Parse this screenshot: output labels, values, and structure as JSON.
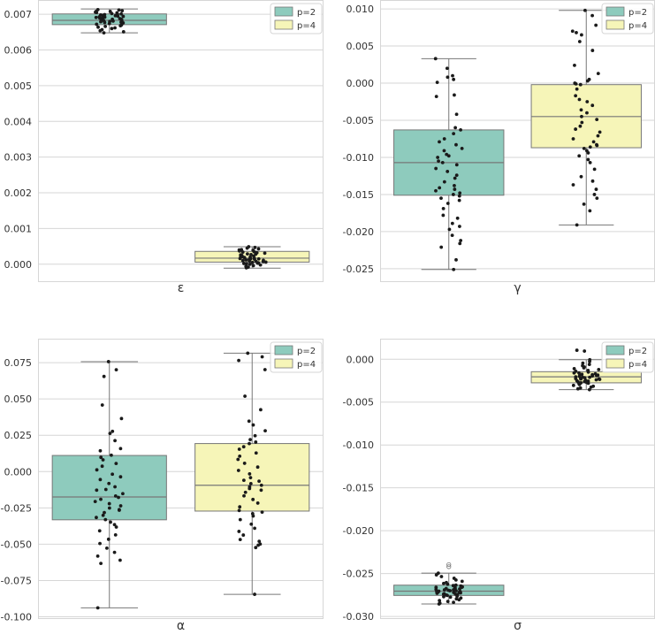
{
  "colors": {
    "p2": "#8ecbbd",
    "p4": "#f6f5b8",
    "grid": "#d6d6d6",
    "frame": "#d6d6d6",
    "median": "#777777",
    "whisker": "#777777",
    "point": "#1a1a1a",
    "text": "#333333"
  },
  "chart_data": [
    {
      "type": "box",
      "xlabel": "ε",
      "ylim": [
        -0.0005,
        0.0074
      ],
      "yticks": [
        0.0,
        0.001,
        0.002,
        0.003,
        0.004,
        0.005,
        0.006,
        0.007
      ],
      "ytick_labels": [
        "0.000",
        "0.001",
        "0.002",
        "0.003",
        "0.004",
        "0.005",
        "0.006",
        "0.007"
      ],
      "grid": true,
      "legend_position": "top-right",
      "series": [
        {
          "name": "p=2",
          "whisker_low": 0.00648,
          "q1": 0.00671,
          "median": 0.00683,
          "q3": 0.00701,
          "whisker_high": 0.00715,
          "points": [
            0.00713,
            0.00712,
            0.0071,
            0.00708,
            0.00706,
            0.00705,
            0.00704,
            0.00702,
            0.00701,
            0.007,
            0.00699,
            0.00698,
            0.00697,
            0.00695,
            0.00694,
            0.00693,
            0.00692,
            0.00691,
            0.0069,
            0.00689,
            0.00688,
            0.00687,
            0.00686,
            0.00685,
            0.00684,
            0.00683,
            0.00682,
            0.00681,
            0.0068,
            0.00679,
            0.00678,
            0.00677,
            0.00676,
            0.00675,
            0.00673,
            0.00672,
            0.0067,
            0.00668,
            0.00666,
            0.00664,
            0.00662,
            0.0066,
            0.00657,
            0.00654,
            0.00651,
            0.00648,
            0.00708,
            0.00696,
            0.00686,
            0.00674
          ]
        },
        {
          "name": "p=4",
          "whisker_low": -0.00011,
          "q1": 6e-05,
          "median": 0.00017,
          "q3": 0.00036,
          "whisker_high": 0.00049,
          "points": [
            0.00049,
            0.00047,
            0.00045,
            0.00043,
            0.00041,
            0.00039,
            0.00037,
            0.00035,
            0.00034,
            0.00032,
            0.00031,
            0.00029,
            0.00028,
            0.00027,
            0.00026,
            0.00024,
            0.00023,
            0.00022,
            0.00021,
            0.0002,
            0.00019,
            0.00018,
            0.00017,
            0.00016,
            0.00015,
            0.00014,
            0.00013,
            0.00012,
            0.00011,
            0.0001,
            9e-05,
            8e-05,
            7e-05,
            6e-05,
            5e-05,
            4e-05,
            3e-05,
            2e-05,
            1e-05,
            0.0,
            -2e-05,
            -4e-05,
            -6e-05,
            -8e-05,
            -0.0001,
            0.00033,
            0.00025,
            0.00015,
            3e-05,
            0.0004
          ]
        }
      ]
    },
    {
      "type": "box",
      "xlabel": "γ",
      "ylim": [
        -0.0268,
        0.0112
      ],
      "yticks": [
        -0.025,
        -0.02,
        -0.015,
        -0.01,
        -0.005,
        0.0,
        0.005,
        0.01
      ],
      "ytick_labels": [
        "-0.025",
        "-0.020",
        "-0.015",
        "-0.010",
        "-0.005",
        "0.000",
        "0.005",
        "0.010"
      ],
      "grid": true,
      "legend_position": "top-right",
      "series": [
        {
          "name": "p=2",
          "whisker_low": -0.0251,
          "q1": -0.0151,
          "median": -0.0107,
          "q3": -0.0063,
          "whisker_high": 0.0033,
          "points": [
            0.0033,
            0.002,
            0.001,
            0.0008,
            0.0005,
            0.0001,
            -0.0016,
            -0.0018,
            -0.0042,
            -0.006,
            -0.0063,
            -0.0068,
            -0.0075,
            -0.0079,
            -0.0083,
            -0.0088,
            -0.0091,
            -0.0096,
            -0.01,
            -0.0105,
            -0.0107,
            -0.011,
            -0.0115,
            -0.0119,
            -0.0124,
            -0.0128,
            -0.0133,
            -0.0138,
            -0.0141,
            -0.0145,
            -0.0148,
            -0.015,
            -0.0152,
            -0.0155,
            -0.0158,
            -0.0162,
            -0.0169,
            -0.0178,
            -0.0182,
            -0.0189,
            -0.0193,
            -0.0197,
            -0.0205,
            -0.0212,
            -0.0216,
            -0.0221,
            -0.0238,
            -0.0251,
            -0.0098,
            -0.0143
          ]
        },
        {
          "name": "p=4",
          "whisker_low": -0.0191,
          "q1": -0.0087,
          "median": -0.0045,
          "q3": -0.0002,
          "whisker_high": 0.0098,
          "points": [
            0.0098,
            0.0091,
            0.0078,
            0.007,
            0.0068,
            0.0065,
            0.0056,
            0.0044,
            0.0024,
            0.0013,
            0.0005,
            0.0003,
            0.0,
            -0.0001,
            -0.0002,
            -0.0008,
            -0.0017,
            -0.0022,
            -0.003,
            -0.0036,
            -0.004,
            -0.0045,
            -0.0049,
            -0.0053,
            -0.0058,
            -0.0062,
            -0.0066,
            -0.0071,
            -0.0075,
            -0.0079,
            -0.0083,
            -0.0086,
            -0.0088,
            -0.0091,
            -0.0094,
            -0.0098,
            -0.0103,
            -0.0107,
            -0.0116,
            -0.0126,
            -0.0132,
            -0.0137,
            -0.0143,
            -0.015,
            -0.0155,
            -0.0163,
            -0.0172,
            -0.0191,
            -0.0025,
            -0.0084
          ]
        }
      ]
    },
    {
      "type": "box",
      "xlabel": "α",
      "ylim": [
        -0.1015,
        0.0915
      ],
      "yticks": [
        -0.1,
        -0.075,
        -0.05,
        -0.025,
        0.0,
        0.025,
        0.05,
        0.075
      ],
      "ytick_labels": [
        "-0.100",
        "-0.075",
        "-0.050",
        "-0.025",
        "0.000",
        "0.025",
        "0.050",
        "0.075"
      ],
      "grid": true,
      "legend_position": "top-right",
      "series": [
        {
          "name": "p=2",
          "whisker_low": -0.0938,
          "q1": -0.0332,
          "median": -0.0175,
          "q3": 0.0111,
          "whisker_high": 0.0757,
          "points": [
            0.0757,
            0.0701,
            0.0655,
            0.0458,
            0.0365,
            0.0277,
            0.0263,
            0.0213,
            0.0158,
            0.0143,
            0.0113,
            0.0098,
            0.0081,
            0.0056,
            0.0012,
            -0.0018,
            -0.0036,
            -0.0055,
            -0.0082,
            -0.0105,
            -0.0128,
            -0.0152,
            -0.0168,
            -0.0178,
            -0.0191,
            -0.0206,
            -0.0221,
            -0.0236,
            -0.0251,
            -0.0266,
            -0.0282,
            -0.0301,
            -0.0316,
            -0.0331,
            -0.0348,
            -0.0365,
            -0.0382,
            -0.0408,
            -0.0436,
            -0.0466,
            -0.0495,
            -0.0527,
            -0.0556,
            -0.0582,
            -0.061,
            -0.0632,
            -0.0938,
            0.0037,
            -0.0123,
            -0.0262
          ]
        },
        {
          "name": "p=4",
          "whisker_low": -0.0845,
          "q1": -0.0272,
          "median": -0.0094,
          "q3": 0.0193,
          "whisker_high": 0.0815,
          "points": [
            0.0815,
            0.079,
            0.0765,
            0.0702,
            0.0519,
            0.0426,
            0.0347,
            0.0321,
            0.0281,
            0.0247,
            0.0203,
            0.0193,
            0.0171,
            0.0154,
            0.0128,
            0.0106,
            0.0084,
            0.0057,
            0.0031,
            0.0008,
            -0.0016,
            -0.0042,
            -0.0066,
            -0.0083,
            -0.0094,
            -0.0105,
            -0.0117,
            -0.0128,
            -0.0143,
            -0.0167,
            -0.0192,
            -0.0217,
            -0.0243,
            -0.0268,
            -0.0279,
            -0.029,
            -0.0306,
            -0.0331,
            -0.0362,
            -0.039,
            -0.0412,
            -0.0437,
            -0.0468,
            -0.048,
            -0.0499,
            -0.0507,
            -0.0523,
            -0.0845,
            -0.006,
            0.022
          ]
        }
      ]
    },
    {
      "type": "box",
      "xlabel": "σ",
      "ylim": [
        -0.0303,
        0.0024
      ],
      "yticks": [
        -0.03,
        -0.025,
        -0.02,
        -0.015,
        -0.01,
        -0.005,
        0.0
      ],
      "ytick_labels": [
        "-0.030",
        "-0.025",
        "-0.020",
        "-0.015",
        "-0.010",
        "-0.005",
        "0.000"
      ],
      "grid": true,
      "legend_position": "top-right",
      "series": [
        {
          "name": "p=2",
          "whisker_low": -0.02855,
          "q1": -0.02755,
          "median": -0.02705,
          "q3": -0.02635,
          "whisker_high": -0.02495,
          "points": [
            -0.02495,
            -0.02515,
            -0.02535,
            -0.02555,
            -0.02575,
            -0.0259,
            -0.02605,
            -0.02615,
            -0.02625,
            -0.02635,
            -0.02645,
            -0.02655,
            -0.0266,
            -0.02665,
            -0.0267,
            -0.02675,
            -0.0268,
            -0.02685,
            -0.0269,
            -0.02695,
            -0.027,
            -0.02705,
            -0.0271,
            -0.02715,
            -0.0272,
            -0.02725,
            -0.0273,
            -0.02735,
            -0.0274,
            -0.02745,
            -0.0275,
            -0.02755,
            -0.02765,
            -0.02775,
            -0.02785,
            -0.02795,
            -0.02805,
            -0.02815,
            -0.02825,
            -0.02835,
            -0.02845,
            -0.02855,
            -0.027,
            -0.0269,
            -0.0272,
            -0.0266,
            -0.0274,
            -0.0277,
            -0.0264,
            -0.0271
          ],
          "outliers": [
            -0.02395,
            -0.0242
          ]
        },
        {
          "name": "p=4",
          "whisker_low": -0.00355,
          "q1": -0.00275,
          "median": -0.00205,
          "q3": -0.00145,
          "whisker_high": -5e-05,
          "points": [
            0.00105,
            0.00095,
            -5e-05,
            -0.00025,
            -0.00045,
            -0.0006,
            -0.00075,
            -0.0009,
            -0.001,
            -0.0011,
            -0.0012,
            -0.0013,
            -0.0014,
            -0.0015,
            -0.0016,
            -0.0017,
            -0.00175,
            -0.0018,
            -0.00185,
            -0.0019,
            -0.00195,
            -0.002,
            -0.00205,
            -0.0021,
            -0.00215,
            -0.0022,
            -0.00225,
            -0.0023,
            -0.00235,
            -0.0024,
            -0.00245,
            -0.0025,
            -0.00255,
            -0.0026,
            -0.00265,
            -0.0027,
            -0.00275,
            -0.0028,
            -0.00285,
            -0.00295,
            -0.00305,
            -0.00315,
            -0.00325,
            -0.00335,
            -0.00345,
            -0.00355,
            -0.0019,
            -0.0023,
            -0.0016,
            -0.0021
          ]
        }
      ]
    }
  ]
}
